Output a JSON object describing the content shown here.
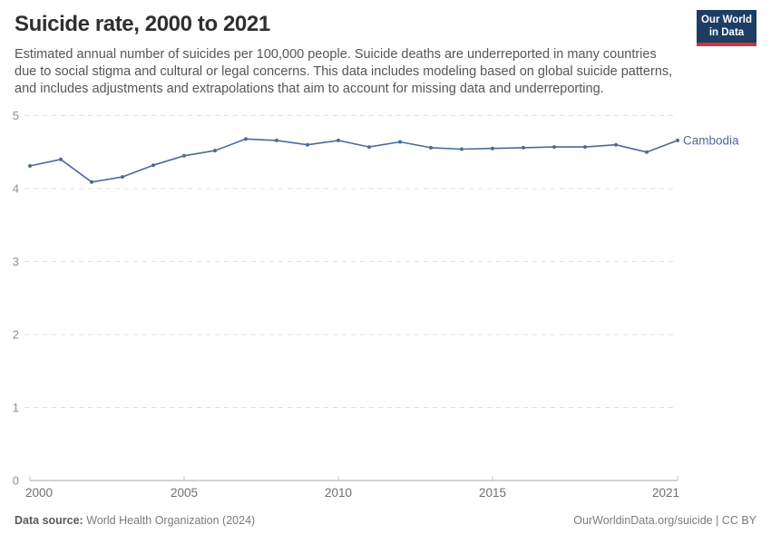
{
  "header": {
    "title": "Suicide rate, 2000 to 2021",
    "subtitle": "Estimated annual number of suicides per 100,000 people. Suicide deaths are underreported in many countries due to social stigma and cultural or legal concerns. This data includes modeling based on global suicide patterns, and includes adjustments and extrapolations that aim to account for missing data and underreporting.",
    "logo": {
      "line1": "Our World",
      "line2": "in Data"
    }
  },
  "chart_data": {
    "type": "line",
    "title": "Suicide rate, 2000 to 2021",
    "xlabel": "",
    "ylabel": "",
    "x": [
      2000,
      2001,
      2002,
      2003,
      2004,
      2005,
      2006,
      2007,
      2008,
      2009,
      2010,
      2011,
      2012,
      2013,
      2014,
      2015,
      2016,
      2017,
      2018,
      2019,
      2020,
      2021
    ],
    "series": [
      {
        "name": "Cambodia",
        "color": "#4c6a9c",
        "values": [
          4.31,
          4.4,
          4.09,
          4.16,
          4.32,
          4.45,
          4.52,
          4.68,
          4.66,
          4.6,
          4.66,
          4.57,
          4.64,
          4.56,
          4.54,
          4.55,
          4.56,
          4.57,
          4.57,
          4.6,
          4.5,
          4.66
        ]
      }
    ],
    "xlim": [
      2000,
      2021
    ],
    "ylim": [
      0,
      5
    ],
    "x_ticks": [
      2000,
      2005,
      2010,
      2015,
      2021
    ],
    "y_ticks": [
      0,
      1,
      2,
      3,
      4,
      5
    ],
    "grid": "horizontal-dashed",
    "legend_position": "end-of-line-label",
    "marker": "dot"
  },
  "footer": {
    "datasource_label": "Data source:",
    "datasource_value": " World Health Organization (2024)",
    "attribution": "OurWorldinData.org/suicide | CC BY"
  },
  "colors": {
    "line": "#4c6a9c",
    "gridline": "#e0e0e0",
    "axis": "#a8a8a8",
    "tick": "#c4c4c4",
    "y_label": "#8f8f8f",
    "x_label": "#6f6f6f",
    "logo_bg": "#1d3d63",
    "logo_red": "#d0353c"
  }
}
